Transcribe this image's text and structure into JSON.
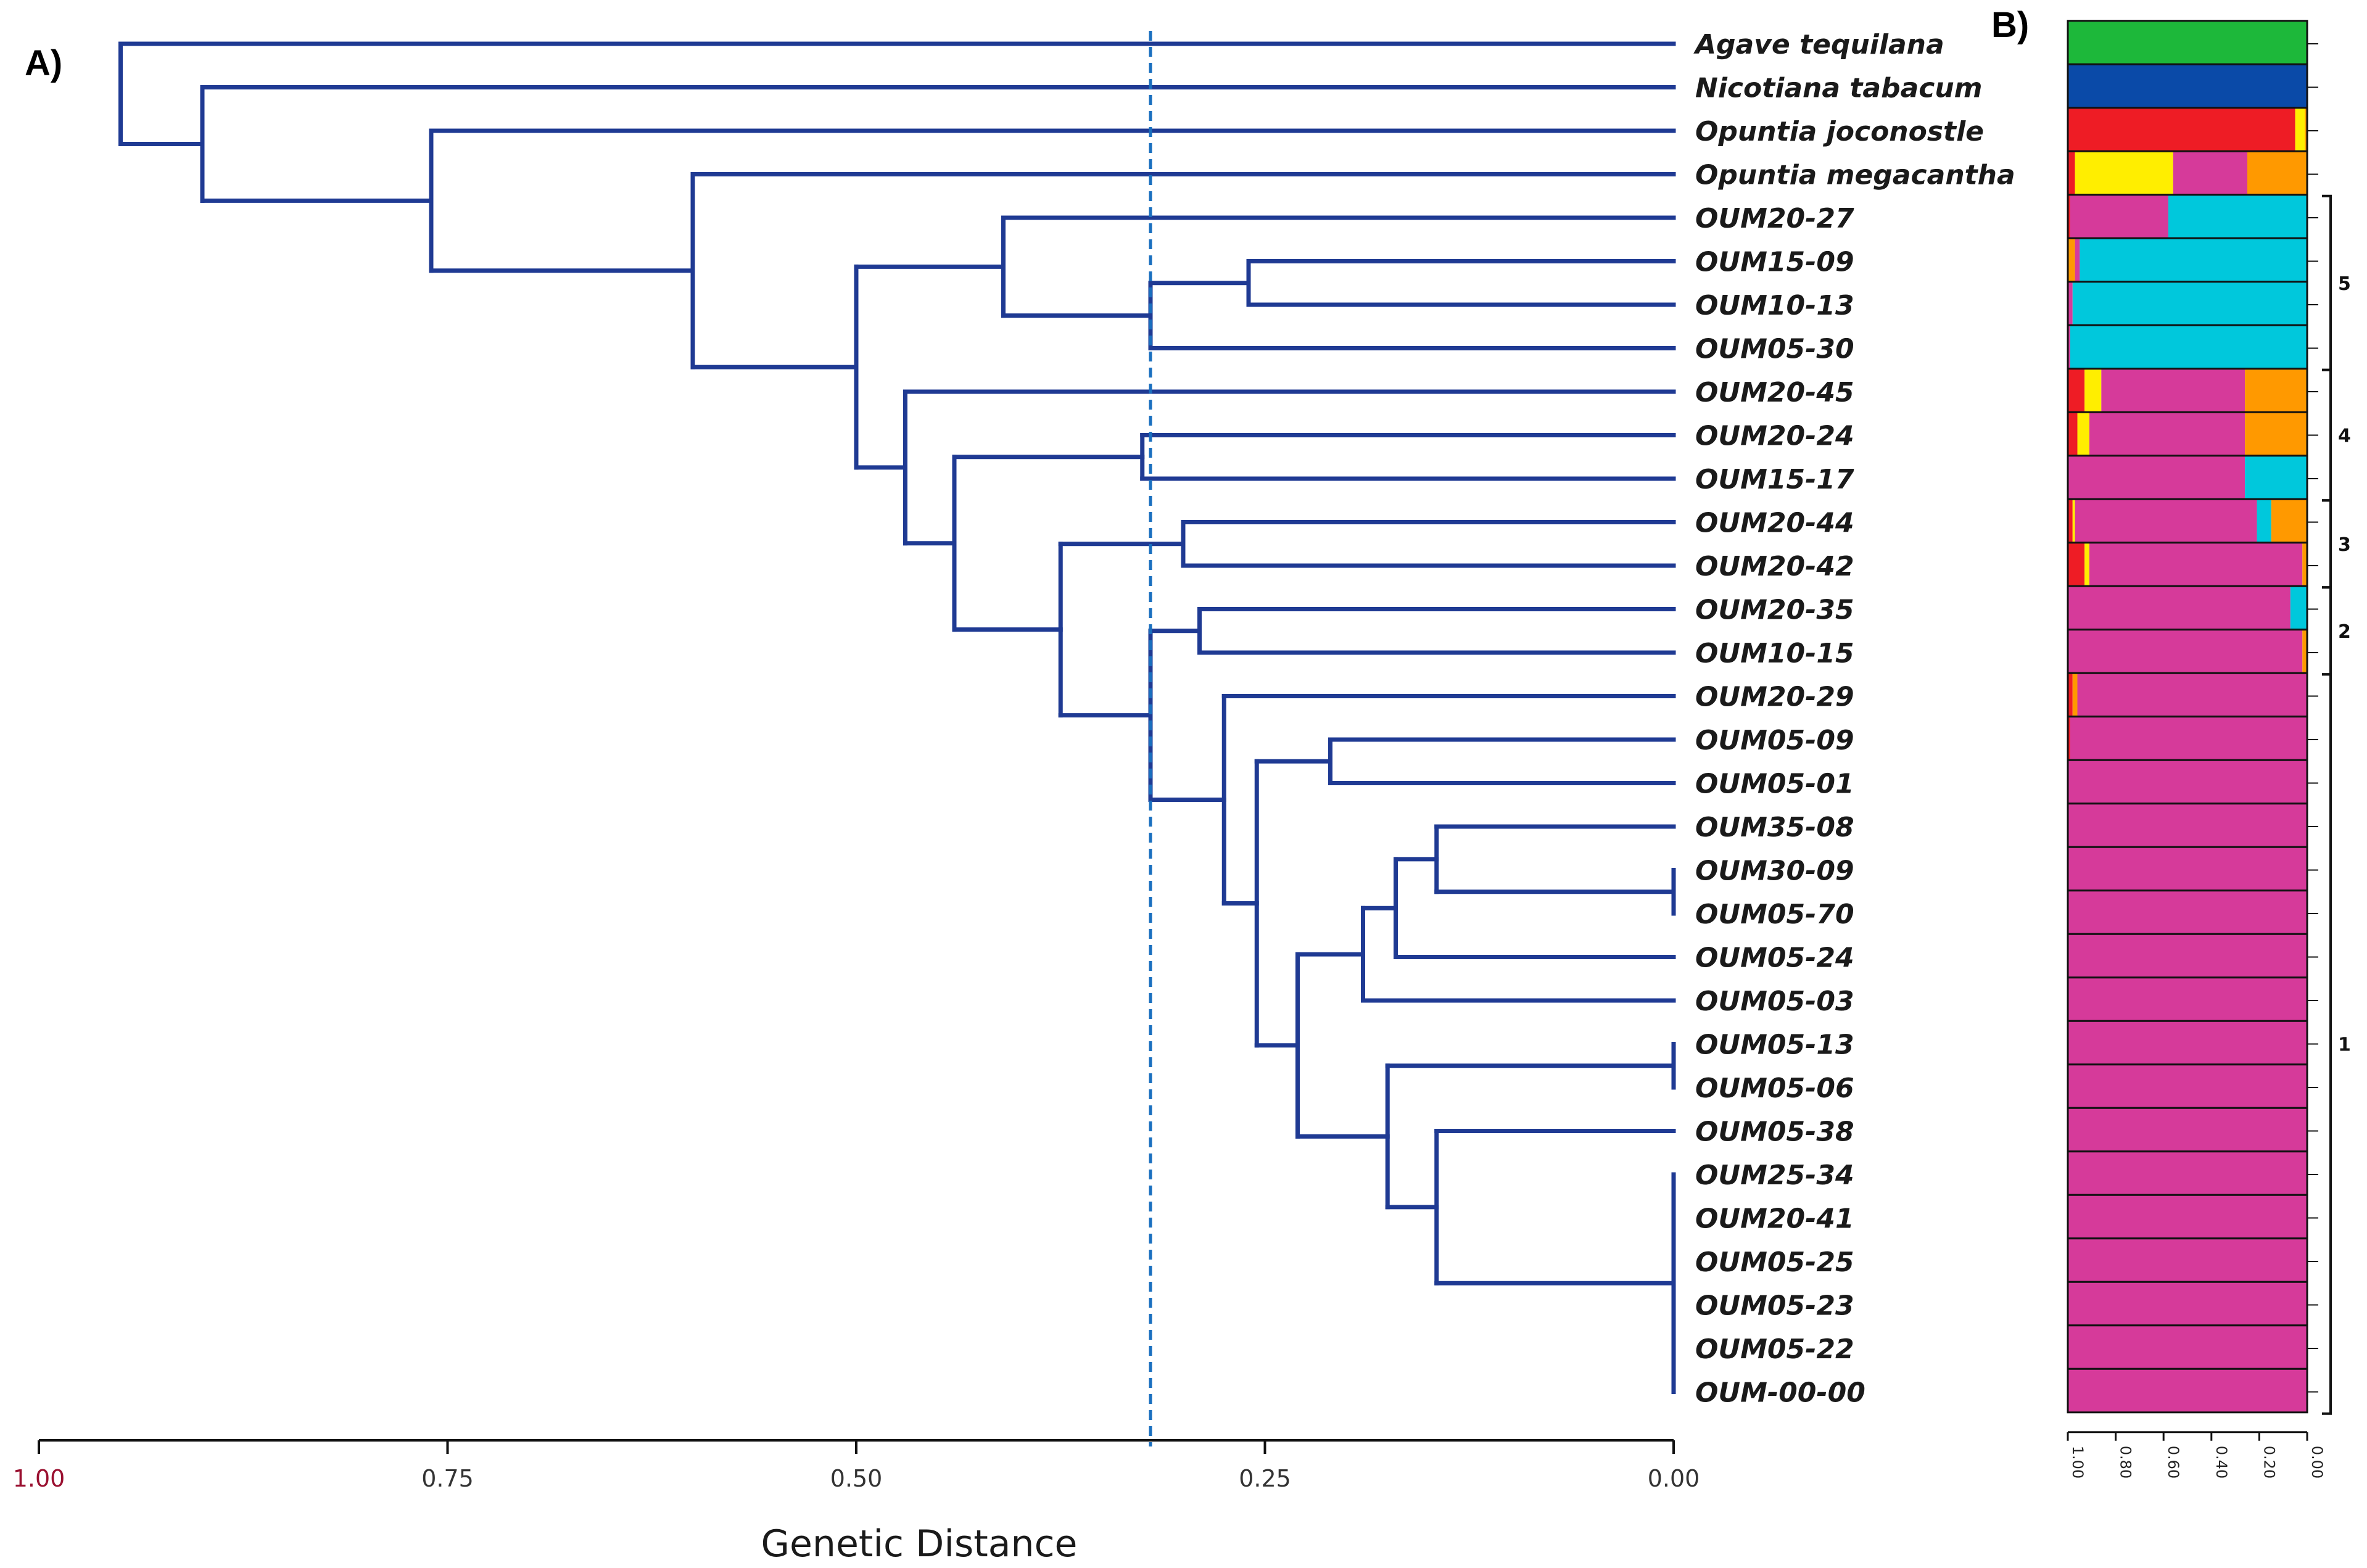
{
  "panels": {
    "a_label": "A)",
    "b_label": "B)"
  },
  "colors": {
    "tree": "#1f3a93",
    "cut_line": "#1a6fbf",
    "green": "#1db83a",
    "blue": "#0a4aa8",
    "red": "#ee1c25",
    "yellow": "#ffee00",
    "magenta": "#d63a9a",
    "orange": "#ff9900",
    "cyan": "#00c8dc"
  },
  "chart_data": [
    {
      "type": "dendrogram",
      "title": "",
      "xlabel": "Genetic Distance",
      "xlim": [
        1.0,
        0.0
      ],
      "xticks": [
        1.0,
        0.75,
        0.5,
        0.25,
        0.0
      ],
      "xtick_labels": [
        "1.00",
        "0.75",
        "0.50",
        "0.25",
        "0.00"
      ],
      "cut_line": 0.32,
      "leaves": [
        "Agave tequilana",
        "Nicotiana tabacum",
        "Opuntia joconostle",
        "Opuntia megacantha",
        "OUM20-27",
        "OUM15-09",
        "OUM10-13",
        "OUM05-30",
        "OUM20-45",
        "OUM20-24",
        "OUM15-17",
        "OUM20-44",
        "OUM20-42",
        "OUM20-35",
        "OUM10-15",
        "OUM20-29",
        "OUM05-09",
        "OUM05-01",
        "OUM35-08",
        "OUM30-09",
        "OUM05-70",
        "OUM05-24",
        "OUM05-03",
        "OUM05-13",
        "OUM05-06",
        "OUM05-38",
        "OUM25-34",
        "OUM20-41",
        "OUM05-25",
        "OUM05-23",
        "OUM05-22",
        "OUM-00-00"
      ],
      "tree": {
        "h": 0.95,
        "c": [
          {
            "leaf": 0
          },
          {
            "h": 0.9,
            "c": [
              {
                "leaf": 1
              },
              {
                "h": 0.76,
                "c": [
                  {
                    "leaf": 2
                  },
                  {
                    "h": 0.6,
                    "c": [
                      {
                        "leaf": 3
                      },
                      {
                        "h": 0.5,
                        "c": [
                          {
                            "h": 0.41,
                            "c": [
                              {
                                "leaf": 4
                              },
                              {
                                "h": 0.32,
                                "c": [
                                  {
                                    "h": 0.26,
                                    "c": [
                                      {
                                        "leaf": 5
                                      },
                                      {
                                        "leaf": 6
                                      }
                                    ]
                                  },
                                  {
                                    "leaf": 7
                                  }
                                ]
                              }
                            ]
                          },
                          {
                            "h": 0.47,
                            "c": [
                              {
                                "leaf": 8
                              },
                              {
                                "h": 0.44,
                                "c": [
                                  {
                                    "h": 0.325,
                                    "c": [
                                      {
                                        "leaf": 9
                                      },
                                      {
                                        "leaf": 10
                                      }
                                    ]
                                  },
                                  {
                                    "h": 0.375,
                                    "c": [
                                      {
                                        "h": 0.3,
                                        "c": [
                                          {
                                            "leaf": 11
                                          },
                                          {
                                            "leaf": 12
                                          }
                                        ]
                                      },
                                      {
                                        "h": 0.32,
                                        "c": [
                                          {
                                            "h": 0.29,
                                            "c": [
                                              {
                                                "leaf": 13
                                              },
                                              {
                                                "leaf": 14
                                              }
                                            ]
                                          },
                                          {
                                            "h": 0.275,
                                            "c": [
                                              {
                                                "leaf": 15
                                              },
                                              {
                                                "h": 0.255,
                                                "c": [
                                                  {
                                                    "h": 0.21,
                                                    "c": [
                                                      {
                                                        "leaf": 16
                                                      },
                                                      {
                                                        "leaf": 17
                                                      }
                                                    ]
                                                  },
                                                  {
                                                    "h": 0.23,
                                                    "c": [
                                                      {
                                                        "h": 0.19,
                                                        "c": [
                                                          {
                                                            "h": 0.17,
                                                            "c": [
                                                              {
                                                                "h": 0.145,
                                                                "c": [
                                                                  {
                                                                    "leaf": 18
                                                                  },
                                                                  {
                                                                    "h": 0.0,
                                                                    "c": [
                                                                      {
                                                                        "leaf": 19
                                                                      },
                                                                      {
                                                                        "leaf": 20
                                                                      }
                                                                    ]
                                                                  }
                                                                ]
                                                              },
                                                              {
                                                                "leaf": 21
                                                              }
                                                            ]
                                                          },
                                                          {
                                                            "leaf": 22
                                                          }
                                                        ]
                                                      },
                                                      {
                                                        "h": 0.175,
                                                        "c": [
                                                          {
                                                            "h": 0.0,
                                                            "c": [
                                                              {
                                                                "leaf": 23
                                                              },
                                                              {
                                                                "leaf": 24
                                                              }
                                                            ]
                                                          },
                                                          {
                                                            "h": 0.145,
                                                            "c": [
                                                              {
                                                                "leaf": 25
                                                              },
                                                              {
                                                                "h": 0.0,
                                                                "c": [
                                                                  {
                                                                    "leaf": 26
                                                                  },
                                                                  {
                                                                    "leaf": 27
                                                                  },
                                                                  {
                                                                    "leaf": 28
                                                                  },
                                                                  {
                                                                    "leaf": 29
                                                                  },
                                                                  {
                                                                    "leaf": 30
                                                                  },
                                                                  {
                                                                    "leaf": 31
                                                                  }
                                                                ]
                                                              }
                                                            ]
                                                          }
                                                        ]
                                                      }
                                                    ]
                                                  }
                                                ]
                                              }
                                            ]
                                          }
                                        ]
                                      }
                                    ]
                                  }
                                ]
                              }
                            ]
                          }
                        ]
                      }
                    ]
                  }
                ]
              }
            ]
          }
        ]
      }
    },
    {
      "type": "stacked_bar",
      "orientation": "horizontal",
      "xlim": [
        1.0,
        0.0
      ],
      "xticks": [
        1.0,
        0.8,
        0.6,
        0.4,
        0.2,
        0.0
      ],
      "xtick_labels": [
        "1.00",
        "0.80",
        "0.60",
        "0.40",
        "0.20",
        "0.00"
      ],
      "components": [
        "green",
        "blue",
        "red",
        "yellow",
        "magenta",
        "orange",
        "cyan"
      ],
      "rows": [
        [
          [
            "green",
            1.0
          ]
        ],
        [
          [
            "blue",
            1.0
          ]
        ],
        [
          [
            "red",
            0.95
          ],
          [
            "yellow",
            0.04
          ],
          [
            "orange",
            0.01
          ]
        ],
        [
          [
            "red",
            0.03
          ],
          [
            "yellow",
            0.41
          ],
          [
            "magenta",
            0.31
          ],
          [
            "orange",
            0.25
          ]
        ],
        [
          [
            "red",
            0.01
          ],
          [
            "magenta",
            0.41
          ],
          [
            "cyan",
            0.58
          ]
        ],
        [
          [
            "orange",
            0.03
          ],
          [
            "magenta",
            0.02
          ],
          [
            "cyan",
            0.95
          ]
        ],
        [
          [
            "magenta",
            0.02
          ],
          [
            "cyan",
            0.98
          ]
        ],
        [
          [
            "magenta",
            0.01
          ],
          [
            "cyan",
            0.99
          ]
        ],
        [
          [
            "red",
            0.07
          ],
          [
            "yellow",
            0.07
          ],
          [
            "magenta",
            0.6
          ],
          [
            "orange",
            0.26
          ]
        ],
        [
          [
            "red",
            0.04
          ],
          [
            "yellow",
            0.05
          ],
          [
            "magenta",
            0.65
          ],
          [
            "orange",
            0.26
          ]
        ],
        [
          [
            "magenta",
            0.74
          ],
          [
            "cyan",
            0.26
          ]
        ],
        [
          [
            "red",
            0.02
          ],
          [
            "yellow",
            0.01
          ],
          [
            "magenta",
            0.76
          ],
          [
            "cyan",
            0.06
          ],
          [
            "orange",
            0.15
          ]
        ],
        [
          [
            "red",
            0.07
          ],
          [
            "yellow",
            0.02
          ],
          [
            "magenta",
            0.89
          ],
          [
            "orange",
            0.02
          ]
        ],
        [
          [
            "magenta",
            0.93
          ],
          [
            "cyan",
            0.07
          ]
        ],
        [
          [
            "magenta",
            0.98
          ],
          [
            "orange",
            0.02
          ]
        ],
        [
          [
            "red",
            0.02
          ],
          [
            "orange",
            0.02
          ],
          [
            "magenta",
            0.96
          ]
        ],
        [
          [
            "red",
            0.01
          ],
          [
            "magenta",
            0.99
          ]
        ],
        [
          [
            "magenta",
            1.0
          ]
        ],
        [
          [
            "magenta",
            1.0
          ]
        ],
        [
          [
            "magenta",
            1.0
          ]
        ],
        [
          [
            "magenta",
            1.0
          ]
        ],
        [
          [
            "magenta",
            1.0
          ]
        ],
        [
          [
            "magenta",
            1.0
          ]
        ],
        [
          [
            "magenta",
            1.0
          ]
        ],
        [
          [
            "magenta",
            1.0
          ]
        ],
        [
          [
            "magenta",
            1.0
          ]
        ],
        [
          [
            "magenta",
            1.0
          ]
        ],
        [
          [
            "magenta",
            1.0
          ]
        ],
        [
          [
            "magenta",
            1.0
          ]
        ],
        [
          [
            "magenta",
            1.0
          ]
        ],
        [
          [
            "magenta",
            1.0
          ]
        ],
        [
          [
            "magenta",
            1.0
          ]
        ]
      ],
      "clusters": [
        {
          "label": "5",
          "from": 4,
          "to": 7
        },
        {
          "label": "4",
          "from": 8,
          "to": 10
        },
        {
          "label": "3",
          "from": 11,
          "to": 12
        },
        {
          "label": "2",
          "from": 13,
          "to": 14
        },
        {
          "label": "1",
          "from": 15,
          "to": 31
        }
      ]
    }
  ]
}
